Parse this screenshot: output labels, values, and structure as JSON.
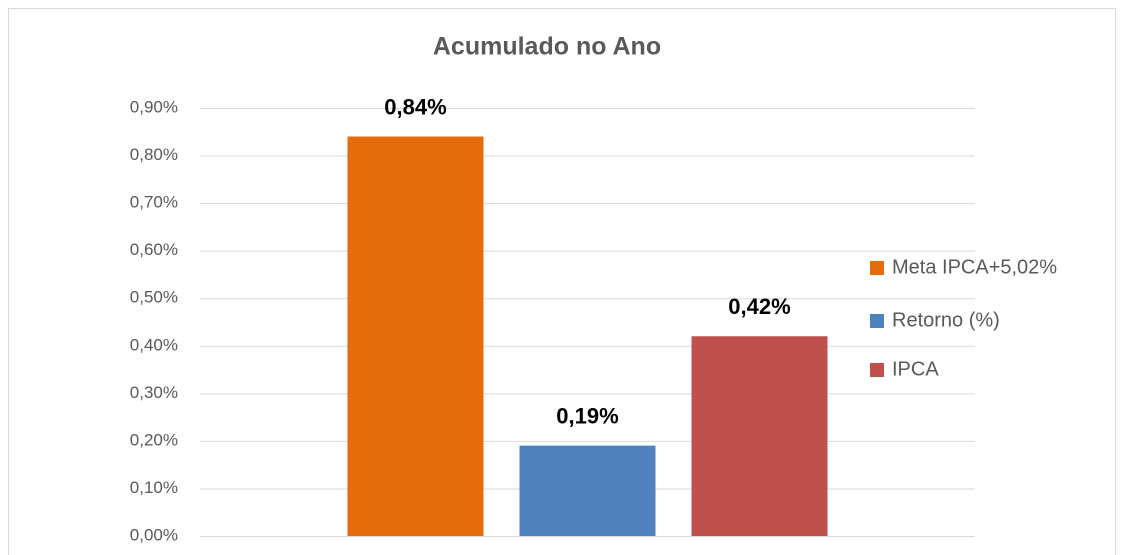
{
  "chart_data": {
    "type": "bar",
    "title": "Acumulado no Ano",
    "categories": [
      null
    ],
    "series": [
      {
        "name": "Meta IPCA+5,02%",
        "color": "#e46c0a",
        "values": [
          0.84
        ],
        "value_labels": [
          "0,84%"
        ]
      },
      {
        "name": "Retorno (%)",
        "color": "#4f81bd",
        "values": [
          0.19
        ],
        "value_labels": [
          "0,19%"
        ]
      },
      {
        "name": "IPCA",
        "color": "#c0504d",
        "values": [
          0.42
        ],
        "value_labels": [
          "0,42%"
        ]
      }
    ],
    "ylim": [
      0,
      0.9
    ],
    "yticks": [
      {
        "value": 0,
        "label": "0,00%"
      },
      {
        "value": 0.1,
        "label": "0,10%"
      },
      {
        "value": 0.2,
        "label": "0,20%"
      },
      {
        "value": 0.3,
        "label": "0,30%"
      },
      {
        "value": 0.4,
        "label": "0,40%"
      },
      {
        "value": 0.5,
        "label": "0,50%"
      },
      {
        "value": 0.6,
        "label": "0,60%"
      },
      {
        "value": 0.7,
        "label": "0,70%"
      },
      {
        "value": 0.8,
        "label": "0,80%"
      },
      {
        "value": 0.9,
        "label": "0,90%"
      }
    ],
    "grid": true,
    "legend": "right"
  }
}
